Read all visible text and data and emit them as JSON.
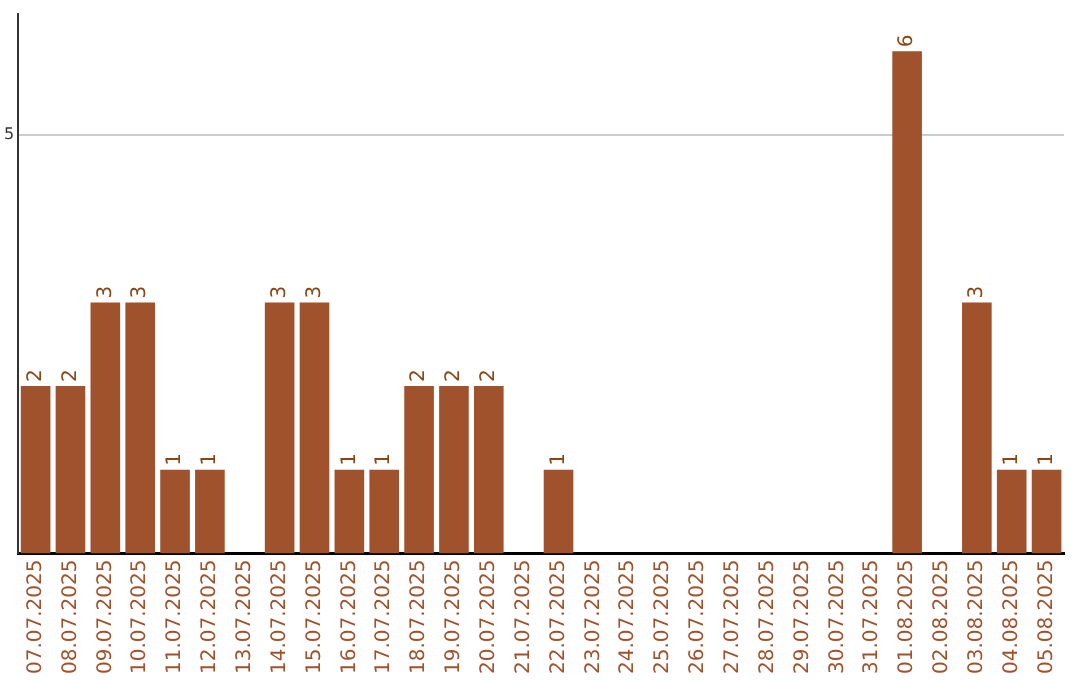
{
  "chart_data": {
    "type": "bar",
    "categories": [
      "07.07.2025",
      "08.07.2025",
      "09.07.2025",
      "10.07.2025",
      "11.07.2025",
      "12.07.2025",
      "13.07.2025",
      "14.07.2025",
      "15.07.2025",
      "16.07.2025",
      "17.07.2025",
      "18.07.2025",
      "19.07.2025",
      "20.07.2025",
      "21.07.2025",
      "22.07.2025",
      "23.07.2025",
      "24.07.2025",
      "25.07.2025",
      "26.07.2025",
      "27.07.2025",
      "28.07.2025",
      "29.07.2025",
      "30.07.2025",
      "31.07.2025",
      "01.08.2025",
      "02.08.2025",
      "03.08.2025",
      "04.08.2025",
      "05.08.2025"
    ],
    "values": [
      2,
      2,
      3,
      3,
      1,
      1,
      0,
      3,
      3,
      1,
      1,
      2,
      2,
      2,
      0,
      1,
      0,
      0,
      0,
      0,
      0,
      0,
      0,
      0,
      0,
      6,
      0,
      3,
      1,
      1
    ],
    "value_labels": [
      "2",
      "2",
      "3",
      "3",
      "1",
      "1",
      null,
      "3",
      "3",
      "1",
      "1",
      "2",
      "2",
      "2",
      null,
      "1",
      null,
      null,
      null,
      null,
      null,
      null,
      null,
      null,
      null,
      "6",
      null,
      "3",
      "1",
      "1"
    ],
    "color": "#a0522d",
    "ylim": [
      0,
      6.45
    ],
    "yticks": [
      5
    ],
    "grid": "y",
    "legend": false
  }
}
